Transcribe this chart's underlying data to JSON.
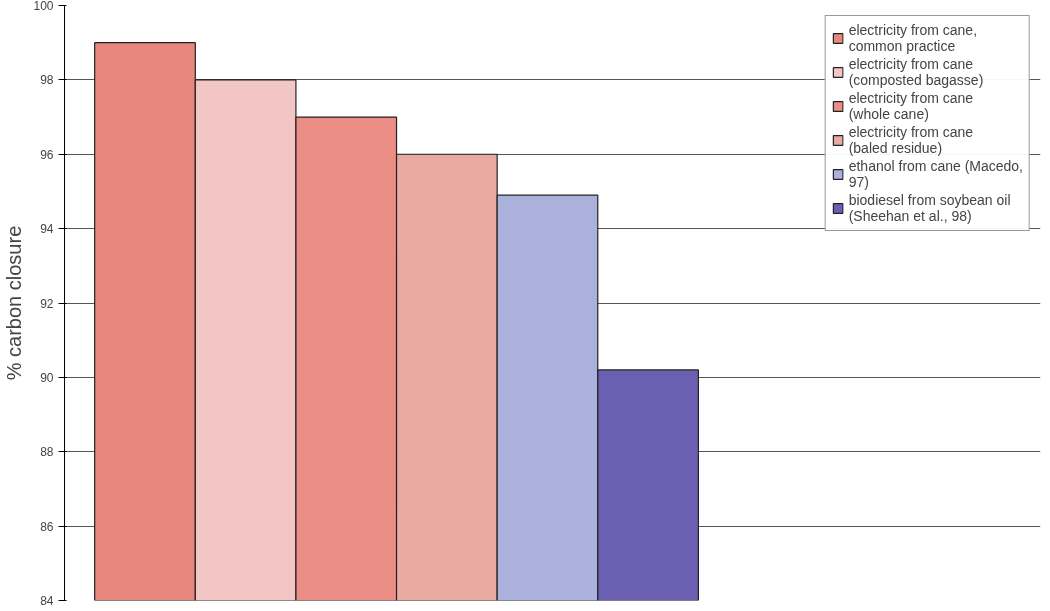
{
  "chart_data": {
    "type": "bar",
    "ylabel": "% carbon closure",
    "categories": [
      null
    ],
    "series": [
      {
        "name": "electricity from cane, common practice",
        "color": "#e8877e",
        "values": [
          99
        ]
      },
      {
        "name": "electricity from cane (composted bagasse)",
        "color": "#f2c6c4",
        "values": [
          98
        ]
      },
      {
        "name": "electricity from cane (whole cane)",
        "color": "#eb8e86",
        "values": [
          97
        ]
      },
      {
        "name": "electricity from cane (baled residue)",
        "color": "#e9aaa2",
        "values": [
          96
        ]
      },
      {
        "name": "ethanol from cane (Macedo, 97)",
        "color": "#aab2dc",
        "values": [
          94.9
        ]
      },
      {
        "name": "biodiesel from soybean oil (Sheehan et al., 98)",
        "color": "#6b5fb2",
        "values": [
          90.2
        ]
      }
    ],
    "ylim": [
      84,
      100
    ],
    "yticks": [
      84,
      86,
      88,
      90,
      92,
      94,
      96,
      98,
      100
    ],
    "grid": "y",
    "legend": "top right"
  }
}
